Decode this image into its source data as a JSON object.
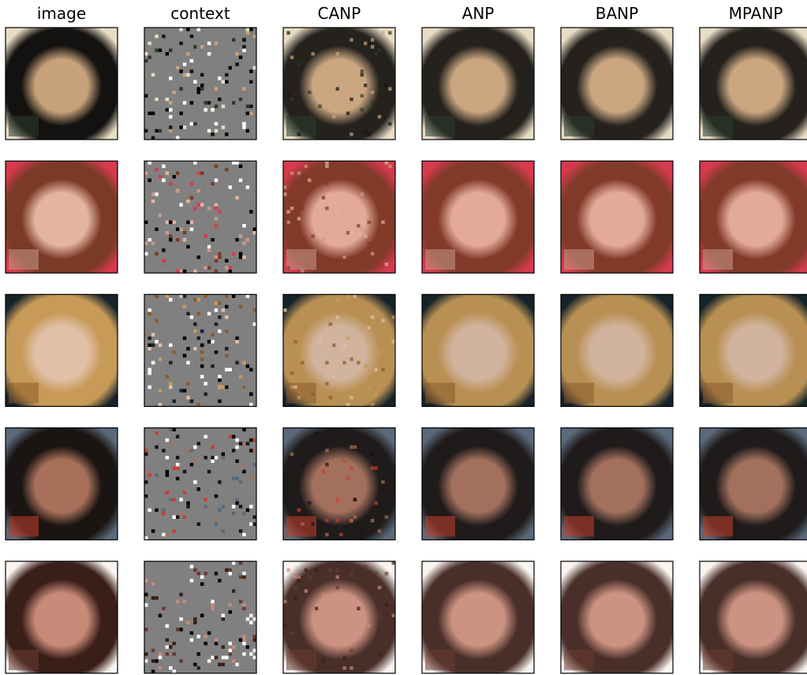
{
  "columns": [
    "image",
    "context",
    "CANP",
    "ANP",
    "BANP",
    "MPANP"
  ]
}
